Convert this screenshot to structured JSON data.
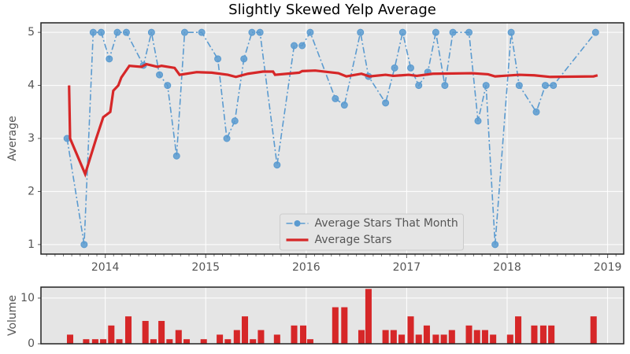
{
  "chart_data": [
    {
      "type": "line",
      "title": "Slightly Skewed Yelp Average",
      "ylabel": "Average",
      "xlim": [
        2013.36,
        2019.16
      ],
      "xticks": [
        2014,
        2015,
        2016,
        2017,
        2018,
        2019
      ],
      "ylim": [
        0.82,
        5.18
      ],
      "yticks": [
        1,
        2,
        3,
        4,
        5
      ],
      "grid": true,
      "legend": "lower center",
      "series": [
        {
          "name": "Average Stars That Month",
          "color": "#5b9bd0",
          "style": "dash-dot",
          "marker": true,
          "x": [
            2013.62,
            2013.79,
            2013.88,
            2013.96,
            2014.04,
            2014.12,
            2014.21,
            2014.38,
            2014.46,
            2014.54,
            2014.62,
            2014.71,
            2014.79,
            2014.96,
            2015.12,
            2015.21,
            2015.29,
            2015.38,
            2015.46,
            2015.54,
            2015.71,
            2015.88,
            2015.96,
            2016.04,
            2016.29,
            2016.38,
            2016.54,
            2016.62,
            2016.79,
            2016.88,
            2016.96,
            2017.04,
            2017.12,
            2017.21,
            2017.29,
            2017.38,
            2017.46,
            2017.62,
            2017.71,
            2017.79,
            2017.88,
            2018.04,
            2018.12,
            2018.29,
            2018.38,
            2018.46,
            2018.88
          ],
          "values": [
            3.0,
            1.0,
            5,
            5,
            4.5,
            5,
            5,
            4.38,
            5,
            4.2,
            4.0,
            2.67,
            5,
            5,
            4.5,
            3.0,
            3.33,
            4.5,
            5,
            5,
            2.5,
            4.75,
            4.75,
            5,
            3.75,
            3.63,
            5,
            4.17,
            3.67,
            4.33,
            5,
            4.33,
            4.0,
            4.25,
            5,
            4.0,
            5,
            5,
            3.33,
            4.0,
            1.0,
            5,
            4.0,
            3.5,
            4.0,
            4.0,
            5
          ]
        },
        {
          "name": "Average Stars",
          "color": "#d62728",
          "style": "solid",
          "marker": false,
          "x": [
            2013.64,
            2013.65,
            2013.8,
            2013.91,
            2013.98,
            2014.05,
            2014.08,
            2014.13,
            2014.16,
            2014.24,
            2014.36,
            2014.41,
            2014.52,
            2014.56,
            2014.69,
            2014.74,
            2014.91,
            2015.06,
            2015.22,
            2015.3,
            2015.42,
            2015.57,
            2015.67,
            2015.69,
            2015.93,
            2015.96,
            2016.09,
            2016.32,
            2016.4,
            2016.55,
            2016.63,
            2016.79,
            2016.87,
            2017.02,
            2017.1,
            2017.26,
            2017.65,
            2017.81,
            2017.88,
            2018.12,
            2018.27,
            2018.43,
            2018.86,
            2018.9
          ],
          "values": [
            4.0,
            3.0,
            2.33,
            3.0,
            3.4,
            3.5,
            3.9,
            4.0,
            4.15,
            4.37,
            4.35,
            4.4,
            4.35,
            4.37,
            4.33,
            4.2,
            4.25,
            4.24,
            4.2,
            4.16,
            4.22,
            4.26,
            4.26,
            4.2,
            4.24,
            4.27,
            4.28,
            4.23,
            4.17,
            4.22,
            4.17,
            4.2,
            4.18,
            4.2,
            4.18,
            4.22,
            4.23,
            4.21,
            4.17,
            4.2,
            4.19,
            4.16,
            4.17,
            4.19
          ]
        }
      ]
    },
    {
      "type": "bar",
      "ylabel": "Volume",
      "color": "#d62728",
      "xlim": [
        2013.36,
        2019.16
      ],
      "xticks": [
        2014,
        2015,
        2016,
        2017,
        2018,
        2019
      ],
      "ylim": [
        0,
        12.4
      ],
      "yticks": [
        0,
        10
      ],
      "grid": true,
      "x": [
        2013.65,
        2013.81,
        2013.9,
        2013.98,
        2014.06,
        2014.14,
        2014.23,
        2014.4,
        2014.48,
        2014.56,
        2014.64,
        2014.73,
        2014.81,
        2014.98,
        2015.14,
        2015.22,
        2015.31,
        2015.39,
        2015.47,
        2015.55,
        2015.71,
        2015.88,
        2015.97,
        2016.04,
        2016.29,
        2016.38,
        2016.55,
        2016.62,
        2016.79,
        2016.87,
        2016.95,
        2017.04,
        2017.12,
        2017.2,
        2017.29,
        2017.37,
        2017.45,
        2017.62,
        2017.7,
        2017.78,
        2017.86,
        2018.03,
        2018.11,
        2018.27,
        2018.36,
        2018.44,
        2018.86
      ],
      "values": [
        2,
        1,
        1,
        1,
        4,
        1,
        6,
        5,
        1,
        5,
        1,
        3,
        1,
        1,
        2,
        1,
        3,
        6,
        1,
        3,
        2,
        4,
        4,
        1,
        8,
        8,
        3,
        12,
        3,
        3,
        2,
        6,
        2,
        4,
        2,
        2,
        3,
        4,
        3,
        3,
        2,
        2,
        6,
        4,
        4,
        4,
        6
      ]
    }
  ]
}
